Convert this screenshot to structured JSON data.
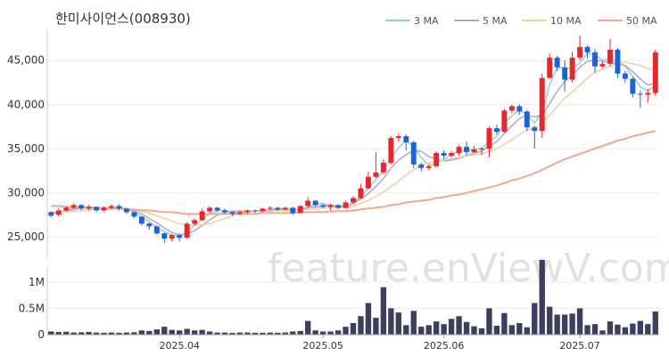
{
  "chart_data": {
    "type": "candlestick",
    "title": "한미사이언스(008930)",
    "watermark": "feature.enViewV.com",
    "legend": {
      "placement": "top-right",
      "items": [
        {
          "name": "3 MA",
          "color": "#8fd3cf"
        },
        {
          "name": "5 MA",
          "color": "#b6a4cf"
        },
        {
          "name": "10 MA",
          "color": "#f1cf9c"
        },
        {
          "name": "50 MA",
          "color": "#f2a78f"
        }
      ]
    },
    "colors": {
      "up": "#e8262b",
      "down": "#1e63d6",
      "volume": "#3d3f5e",
      "grid": "#eeeeee"
    },
    "price_axis": {
      "range": [
        22500,
        48500
      ],
      "ticks": [
        25000,
        30000,
        35000,
        40000,
        45000
      ],
      "tick_labels": [
        "25,000",
        "30,000",
        "35,000",
        "40,000",
        "45,000"
      ]
    },
    "volume_axis": {
      "range": [
        0,
        1300000
      ],
      "ticks": [
        0,
        500000,
        1000000
      ],
      "tick_labels": [
        "0",
        "0.5M",
        "1M"
      ]
    },
    "x_ticks": [
      {
        "label": "2025.04",
        "index": 17
      },
      {
        "label": "2025.05",
        "index": 36
      },
      {
        "label": "2025.06",
        "index": 52
      },
      {
        "label": "2025.07",
        "index": 70
      }
    ],
    "candles": [
      [
        27800,
        27400,
        27900,
        27200
      ],
      [
        27500,
        28000,
        28200,
        27300
      ],
      [
        28000,
        28300,
        28500,
        27800
      ],
      [
        28300,
        28600,
        28800,
        28100
      ],
      [
        28600,
        28200,
        28700,
        28000
      ],
      [
        28200,
        28400,
        28600,
        28000
      ],
      [
        28400,
        28000,
        28500,
        27800
      ],
      [
        28000,
        28300,
        28500,
        27900
      ],
      [
        28300,
        28500,
        28700,
        28100
      ],
      [
        28500,
        28200,
        28700,
        28000
      ],
      [
        28200,
        27800,
        28300,
        27600
      ],
      [
        27800,
        27300,
        27900,
        27100
      ],
      [
        27300,
        26500,
        27300,
        26300
      ],
      [
        26500,
        26200,
        26600,
        25800
      ],
      [
        26200,
        25400,
        26300,
        25200
      ],
      [
        25400,
        24800,
        25500,
        24300
      ],
      [
        24800,
        25200,
        25300,
        24500
      ],
      [
        25200,
        24900,
        25400,
        24500
      ],
      [
        24900,
        26500,
        26700,
        24800
      ],
      [
        26500,
        26900,
        27100,
        26300
      ],
      [
        26900,
        27900,
        28200,
        26800
      ],
      [
        27900,
        28300,
        28500,
        27700
      ],
      [
        28300,
        28000,
        28400,
        27800
      ],
      [
        28000,
        27800,
        28200,
        27600
      ],
      [
        27800,
        27600,
        27900,
        27400
      ],
      [
        27600,
        27800,
        28000,
        27500
      ],
      [
        27800,
        28000,
        28100,
        27600
      ],
      [
        28000,
        27900,
        28100,
        27700
      ],
      [
        27900,
        28200,
        28300,
        27800
      ],
      [
        28200,
        28300,
        28500,
        28000
      ],
      [
        28300,
        28100,
        28400,
        27900
      ],
      [
        28100,
        28300,
        28400,
        28000
      ],
      [
        28300,
        27700,
        28400,
        27500
      ],
      [
        27700,
        28500,
        28600,
        27600
      ],
      [
        28500,
        29100,
        29500,
        28300
      ],
      [
        29100,
        28600,
        29200,
        28400
      ],
      [
        28600,
        28400,
        28800,
        28200
      ],
      [
        28400,
        28600,
        28800,
        28000
      ],
      [
        28600,
        28300,
        28700,
        28100
      ],
      [
        28300,
        28900,
        29100,
        28200
      ],
      [
        28900,
        29400,
        29600,
        28700
      ],
      [
        29400,
        30500,
        31000,
        29300
      ],
      [
        30500,
        31800,
        32400,
        30400
      ],
      [
        31800,
        32300,
        34600,
        31700
      ],
      [
        32300,
        33400,
        33800,
        32100
      ],
      [
        33400,
        36200,
        36400,
        33200
      ],
      [
        36200,
        36400,
        36700,
        35800
      ],
      [
        36400,
        35700,
        36600,
        34800
      ],
      [
        35700,
        33200,
        35900,
        32800
      ],
      [
        33200,
        32800,
        33400,
        32400
      ],
      [
        32800,
        33000,
        33200,
        32600
      ],
      [
        33000,
        34500,
        34700,
        32900
      ],
      [
        34500,
        34200,
        34800,
        33800
      ],
      [
        34200,
        34500,
        34700,
        34000
      ],
      [
        34500,
        35200,
        35400,
        34200
      ],
      [
        35200,
        34600,
        35800,
        34200
      ],
      [
        34600,
        34900,
        35300,
        34500
      ],
      [
        34900,
        35000,
        35200,
        34300
      ],
      [
        35000,
        37300,
        37500,
        34000
      ],
      [
        37300,
        36900,
        37700,
        36600
      ],
      [
        36900,
        39300,
        39500,
        36800
      ],
      [
        39300,
        39800,
        40000,
        39000
      ],
      [
        39800,
        39200,
        40000,
        38800
      ],
      [
        39200,
        37400,
        39400,
        37000
      ],
      [
        37400,
        37000,
        37600,
        35000
      ],
      [
        37000,
        43000,
        43500,
        36200
      ],
      [
        43000,
        45300,
        45800,
        42900
      ],
      [
        45300,
        44200,
        45500,
        43800
      ],
      [
        44200,
        42800,
        45000,
        41500
      ],
      [
        42800,
        45300,
        46000,
        42500
      ],
      [
        45300,
        46500,
        47800,
        45000
      ],
      [
        46500,
        45900,
        46700,
        45200
      ],
      [
        45900,
        44300,
        46300,
        43600
      ],
      [
        44300,
        44600,
        44900,
        44100
      ],
      [
        44600,
        46200,
        47400,
        44300
      ],
      [
        46200,
        43500,
        46400,
        43000
      ],
      [
        43500,
        42900,
        43800,
        42500
      ],
      [
        42900,
        41200,
        43100,
        40800
      ],
      [
        41200,
        41100,
        41600,
        39600
      ],
      [
        41100,
        41300,
        41800,
        40200
      ],
      [
        41300,
        45900,
        46200,
        41000
      ]
    ],
    "volume": [
      60000,
      50000,
      55000,
      40000,
      45000,
      50000,
      40000,
      35000,
      40000,
      35000,
      40000,
      45000,
      80000,
      70000,
      100000,
      150000,
      90000,
      80000,
      110000,
      80000,
      90000,
      60000,
      40000,
      40000,
      35000,
      40000,
      40000,
      35000,
      35000,
      40000,
      35000,
      40000,
      60000,
      70000,
      260000,
      80000,
      60000,
      60000,
      80000,
      150000,
      220000,
      350000,
      600000,
      320000,
      900000,
      500000,
      420000,
      180000,
      450000,
      150000,
      180000,
      250000,
      200000,
      300000,
      350000,
      240000,
      160000,
      120000,
      500000,
      170000,
      410000,
      180000,
      220000,
      140000,
      600000,
      1420000,
      530000,
      380000,
      380000,
      400000,
      500000,
      180000,
      200000,
      80000,
      250000,
      190000,
      140000,
      210000,
      260000,
      200000,
      440000
    ],
    "ma": {
      "ma3": [
        27600,
        27800,
        28000,
        28300,
        28400,
        28400,
        28300,
        28200,
        28300,
        28300,
        28200,
        27800,
        27300,
        26700,
        26100,
        25600,
        25200,
        25000,
        25600,
        26300,
        27000,
        27600,
        28000,
        28000,
        27800,
        27700,
        27800,
        27900,
        28000,
        28100,
        28200,
        28200,
        28000,
        28100,
        28400,
        28700,
        28800,
        28500,
        28400,
        28500,
        28800,
        29500,
        30500,
        31500,
        32500,
        33900,
        35100,
        35900,
        35200,
        34000,
        33100,
        33300,
        33800,
        34300,
        34700,
        34800,
        34900,
        35000,
        35800,
        36400,
        37900,
        38700,
        39400,
        38800,
        37900,
        39100,
        42200,
        44200,
        44100,
        44100,
        44700,
        45800,
        45600,
        45000,
        45100,
        44800,
        44300,
        43200,
        42000,
        41500,
        42200
      ],
      "ma5": [
        27700,
        27800,
        27900,
        28100,
        28300,
        28300,
        28300,
        28300,
        28300,
        28300,
        28200,
        28000,
        27600,
        27100,
        26600,
        26000,
        25500,
        25200,
        25400,
        25700,
        26300,
        26900,
        27500,
        27800,
        27900,
        27900,
        27900,
        27900,
        27900,
        28000,
        28100,
        28100,
        28100,
        28100,
        28300,
        28400,
        28500,
        28600,
        28500,
        28500,
        28800,
        29300,
        29900,
        30700,
        31600,
        32800,
        33700,
        34300,
        34800,
        34700,
        34100,
        33800,
        33600,
        33700,
        33900,
        34200,
        34500,
        34700,
        35300,
        35800,
        36700,
        37600,
        38400,
        38800,
        38600,
        38800,
        40100,
        41500,
        42600,
        43300,
        44200,
        44900,
        45000,
        44900,
        44700,
        44600,
        44400,
        43700,
        42900,
        42200,
        42400
      ],
      "ma10": [
        27800,
        27800,
        27900,
        27900,
        28000,
        28100,
        28100,
        28100,
        28200,
        28200,
        28200,
        28100,
        27900,
        27700,
        27400,
        27100,
        26800,
        26500,
        26400,
        26300,
        26400,
        26500,
        26800,
        27100,
        27400,
        27700,
        27800,
        27900,
        27900,
        27900,
        28000,
        28000,
        28000,
        28000,
        28100,
        28200,
        28300,
        28300,
        28300,
        28300,
        28500,
        28800,
        29100,
        29600,
        30100,
        30700,
        31300,
        32000,
        32600,
        33100,
        33400,
        33500,
        33700,
        33900,
        34000,
        34200,
        34300,
        34400,
        34700,
        35000,
        35500,
        36000,
        36600,
        37100,
        37300,
        37900,
        38800,
        39800,
        40700,
        41400,
        42200,
        43000,
        43600,
        44000,
        44300,
        44700,
        44800,
        44600,
        44400,
        44100,
        43900
      ],
      "ma50": [
        28500,
        28500,
        28400,
        28400,
        28400,
        28300,
        28300,
        28200,
        28200,
        28200,
        28100,
        28100,
        28000,
        28000,
        27900,
        27800,
        27800,
        27700,
        27600,
        27600,
        27600,
        27600,
        27600,
        27600,
        27600,
        27600,
        27600,
        27600,
        27700,
        27700,
        27700,
        27700,
        27700,
        27800,
        27800,
        27800,
        27800,
        27900,
        27900,
        27900,
        28000,
        28100,
        28200,
        28300,
        28400,
        28600,
        28700,
        28900,
        29000,
        29100,
        29200,
        29400,
        29500,
        29700,
        29800,
        30000,
        30200,
        30400,
        30600,
        30800,
        31100,
        31400,
        31600,
        31900,
        32200,
        32600,
        33000,
        33400,
        33800,
        34100,
        34400,
        34700,
        35000,
        35300,
        35600,
        35900,
        36100,
        36400,
        36600,
        36800,
        37000
      ]
    }
  }
}
